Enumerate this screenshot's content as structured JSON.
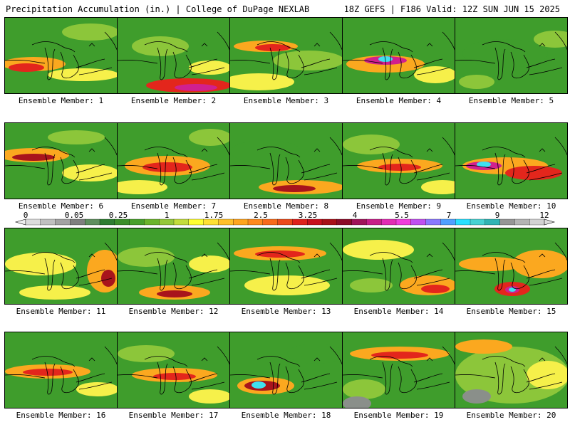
{
  "header": {
    "left": "Precipitation Accumulation (in.) | College of DuPage NEXLAB",
    "right": "18Z GEFS | F186 Valid: 12Z SUN JUN 15 2025"
  },
  "colorbar": {
    "tick_labels": [
      "0",
      "0.05",
      "0.25",
      "1",
      "1.75",
      "2.5",
      "3.25",
      "4",
      "5.5",
      "7",
      "9",
      "12"
    ],
    "colors": [
      "#dcdcdc",
      "#c0c0c0",
      "#a3a3a3",
      "#7f7f7f",
      "#5f8f5f",
      "#2e7d32",
      "#3b8e2a",
      "#48a02c",
      "#6bb42c",
      "#95c83a",
      "#c3dc3c",
      "#ffff33",
      "#ffe033",
      "#ffc02a",
      "#ffa51e",
      "#ff8a1e",
      "#f86a1a",
      "#ec4a1a",
      "#de221c",
      "#c8101c",
      "#a81018",
      "#8c0c28",
      "#a0145a",
      "#c81e88",
      "#e22cb4",
      "#f03cdc",
      "#c050f0",
      "#8a78ff",
      "#50a0ff",
      "#28e0ff",
      "#46d2d2",
      "#30b4b4",
      "#969696",
      "#b4b4b4",
      "#d2d2d2"
    ]
  },
  "panels": [
    {
      "label": "Ensemble Member: 1"
    },
    {
      "label": "Ensemble Member: 2"
    },
    {
      "label": "Ensemble Member: 3"
    },
    {
      "label": "Ensemble Member: 4"
    },
    {
      "label": "Ensemble Member: 5"
    },
    {
      "label": "Ensemble Member: 6"
    },
    {
      "label": "Ensemble Member: 7"
    },
    {
      "label": "Ensemble Member: 8"
    },
    {
      "label": "Ensemble Member: 9"
    },
    {
      "label": "Ensemble Member: 10"
    },
    {
      "label": "Ensemble Member: 11"
    },
    {
      "label": "Ensemble Member: 12"
    },
    {
      "label": "Ensemble Member: 13"
    },
    {
      "label": "Ensemble Member: 14"
    },
    {
      "label": "Ensemble Member: 15"
    },
    {
      "label": "Ensemble Member: 16"
    },
    {
      "label": "Ensemble Member: 17"
    },
    {
      "label": "Ensemble Member: 18"
    },
    {
      "label": "Ensemble Member: 19"
    },
    {
      "label": "Ensemble Member: 20"
    }
  ],
  "palette": {
    "green": "#3f9d2c",
    "lightgreen": "#8cc63a",
    "yellow": "#f6f04a",
    "orange": "#fba81f",
    "red": "#e3261c",
    "darkred": "#a8141c",
    "magenta": "#d0208e",
    "violet": "#c040e0",
    "cyan": "#40e0f0",
    "gray": "#8a8f8a",
    "outline": "#000000"
  }
}
